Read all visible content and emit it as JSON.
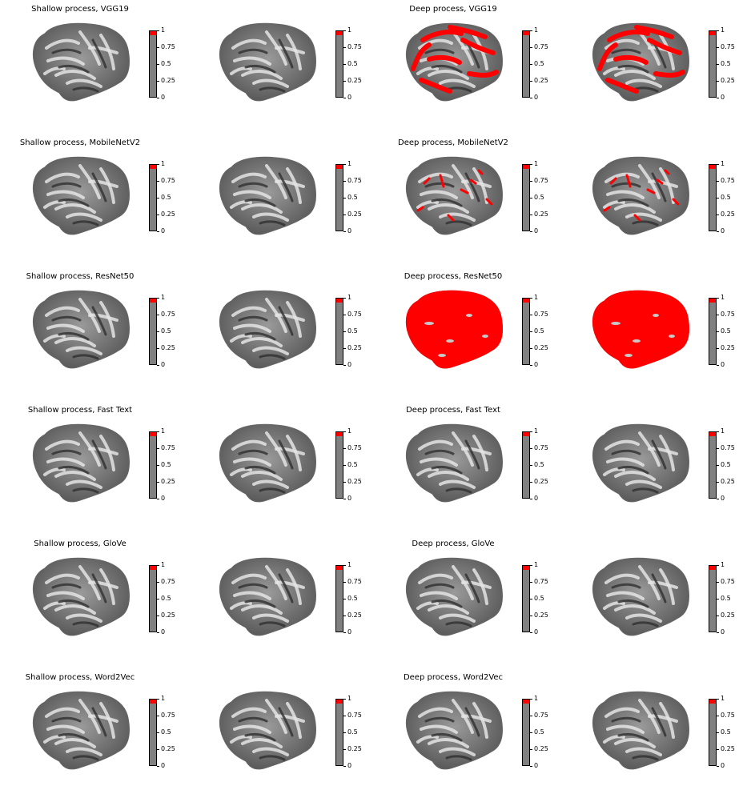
{
  "figure": {
    "rows": [
      {
        "shallow_title": "Shallow process, VGG19",
        "deep_title": "Deep process, VGG19",
        "deep_red": "medium"
      },
      {
        "shallow_title": "Shallow process, MobileNetV2",
        "deep_title": "Deep process, MobileNetV2",
        "deep_red": "low"
      },
      {
        "shallow_title": "Shallow process, ResNet50",
        "deep_title": "Deep process, ResNet50",
        "deep_red": "full"
      },
      {
        "shallow_title": "Shallow process, Fast Text",
        "deep_title": "Deep process, Fast Text",
        "deep_red": "none"
      },
      {
        "shallow_title": "Shallow process, GloVe",
        "deep_title": "Deep process, GloVe",
        "deep_red": "none"
      },
      {
        "shallow_title": "Shallow process, Word2Vec",
        "deep_title": "Deep process, Word2Vec",
        "deep_red": "none"
      }
    ],
    "colorbar": {
      "ticks": [
        "1",
        "0.75",
        "0.5",
        "0.25",
        "0"
      ],
      "colors": {
        "base": "#808080",
        "top": "#ff0000",
        "overlay": "#ff0000"
      }
    }
  }
}
